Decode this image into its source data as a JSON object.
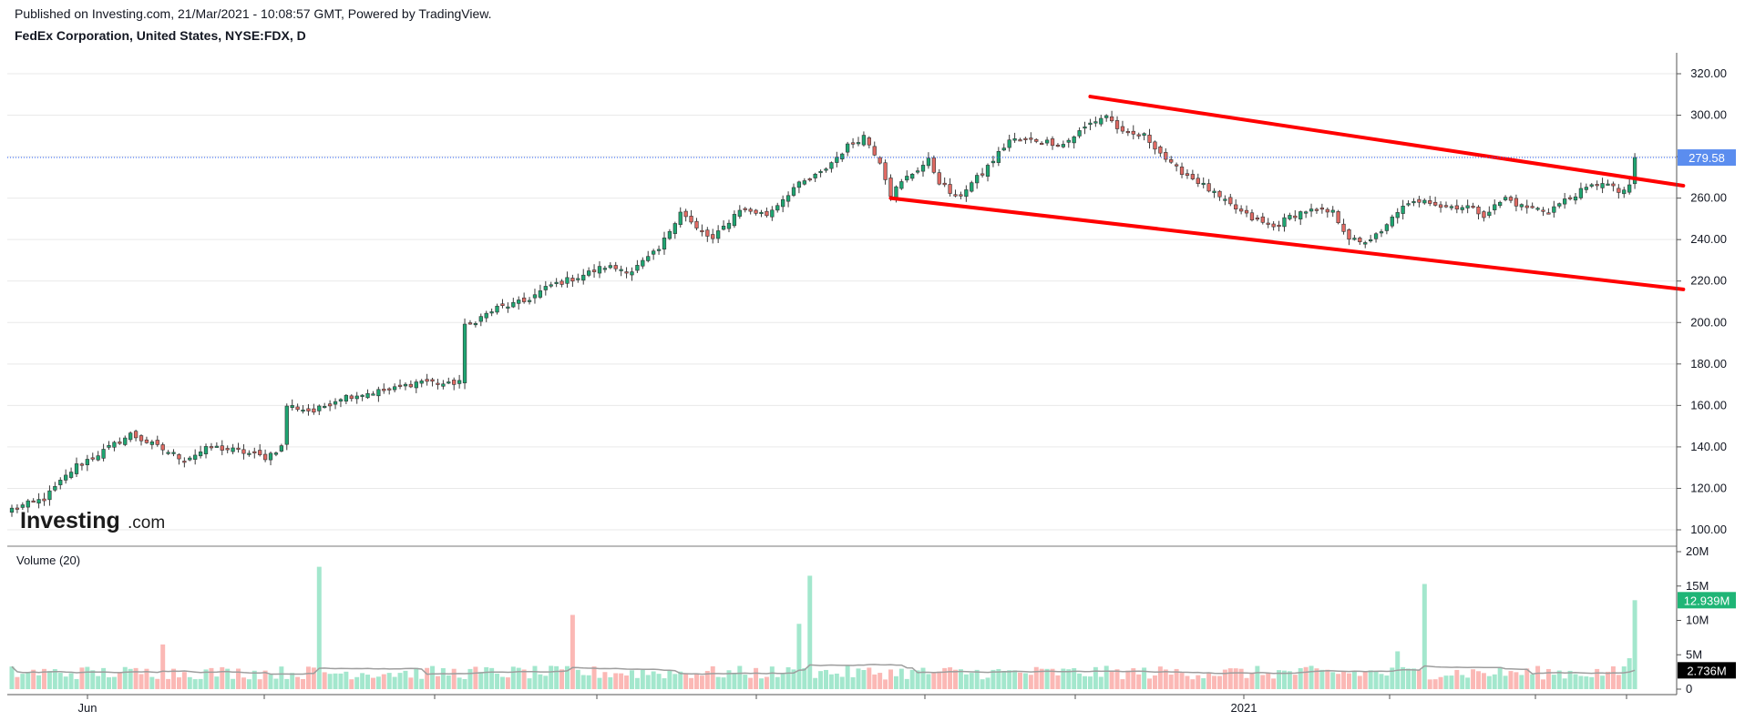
{
  "header": {
    "published": "Published on Investing.com, 21/Mar/2021 - 10:08:57 GMT, Powered by TradingView.",
    "symbol": "FedEx Corporation, United States, NYSE:FDX, D"
  },
  "watermark": {
    "brand": "Investing",
    "suffix": ".com"
  },
  "colors": {
    "up": "#26a69a",
    "up_fill": "#1ea672",
    "down": "#e0605a",
    "down_fill": "#e06a63",
    "vol_up": "#a3e7cd",
    "vol_down": "#fbb8b5",
    "ma": "#9e9e9e",
    "trendline": "#ff0000",
    "price_badge": "#5b8def",
    "vol_badge": "#1fb576",
    "grid": "#e9e9e9"
  },
  "chart_data": {
    "type": "candlestick",
    "price_axis": {
      "min": 100,
      "max": 320,
      "ticks": [
        "100.00",
        "120.00",
        "140.00",
        "160.00",
        "180.00",
        "200.00",
        "220.00",
        "240.00",
        "260.00",
        "280.00",
        "300.00",
        "320.00"
      ]
    },
    "volume_axis": {
      "min": 0,
      "max": 20000000,
      "ticks": [
        "0",
        "5M",
        "10M",
        "15M",
        "20M"
      ]
    },
    "x_labels": [
      {
        "label": "Jun",
        "date": "2020-06"
      },
      {
        "label": "2021",
        "date": "2021-01"
      }
    ],
    "last_price_label": "279.58",
    "last_price": 279.58,
    "volume_indicator_label": "Volume (20)",
    "last_volume_label": "12.939M",
    "last_volume": 12939000,
    "volume_ma_label": "2.736M",
    "volume_ma": 2736000,
    "keypoints": [
      [
        0,
        110
      ],
      [
        6,
        115
      ],
      [
        12,
        131
      ],
      [
        17,
        138
      ],
      [
        22,
        146
      ],
      [
        27,
        140
      ],
      [
        32,
        134
      ],
      [
        37,
        140
      ],
      [
        42,
        138
      ],
      [
        47,
        135
      ],
      [
        50,
        140
      ],
      [
        51,
        160
      ],
      [
        56,
        157
      ],
      [
        61,
        164
      ],
      [
        66,
        166
      ],
      [
        71,
        168
      ],
      [
        76,
        172
      ],
      [
        81,
        170
      ],
      [
        83,
        172
      ],
      [
        84,
        198
      ],
      [
        90,
        207
      ],
      [
        95,
        210
      ],
      [
        100,
        218
      ],
      [
        105,
        222
      ],
      [
        110,
        227
      ],
      [
        115,
        225
      ],
      [
        120,
        235
      ],
      [
        124,
        254
      ],
      [
        127,
        245
      ],
      [
        130,
        240
      ],
      [
        135,
        255
      ],
      [
        140,
        252
      ],
      [
        145,
        265
      ],
      [
        150,
        272
      ],
      [
        155,
        285
      ],
      [
        158,
        290
      ],
      [
        161,
        278
      ],
      [
        163,
        262
      ],
      [
        166,
        270
      ],
      [
        170,
        278
      ],
      [
        172,
        268
      ],
      [
        175,
        260
      ],
      [
        180,
        272
      ],
      [
        185,
        288
      ],
      [
        190,
        288
      ],
      [
        195,
        286
      ],
      [
        200,
        296
      ],
      [
        203,
        300
      ],
      [
        206,
        291
      ],
      [
        210,
        290
      ],
      [
        212,
        285
      ],
      [
        215,
        276
      ],
      [
        220,
        268
      ],
      [
        225,
        258
      ],
      [
        230,
        250
      ],
      [
        234,
        246
      ],
      [
        237,
        251
      ],
      [
        240,
        254
      ],
      [
        245,
        253
      ],
      [
        248,
        241
      ],
      [
        250,
        238
      ],
      [
        254,
        243
      ],
      [
        257,
        254
      ],
      [
        262,
        260
      ],
      [
        265,
        256
      ],
      [
        270,
        256
      ],
      [
        273,
        252
      ],
      [
        277,
        260
      ],
      [
        280,
        256
      ],
      [
        285,
        254
      ],
      [
        290,
        262
      ],
      [
        295,
        268
      ],
      [
        298,
        263
      ],
      [
        301,
        266
      ]
    ],
    "trendlines": [
      {
        "name": "upper",
        "from": {
          "bar": 200,
          "price": 309
        },
        "to": {
          "bar": 310,
          "price": 266
        }
      },
      {
        "name": "lower",
        "from": {
          "bar": 163,
          "price": 260
        },
        "to": {
          "bar": 310,
          "price": 216
        }
      }
    ]
  }
}
